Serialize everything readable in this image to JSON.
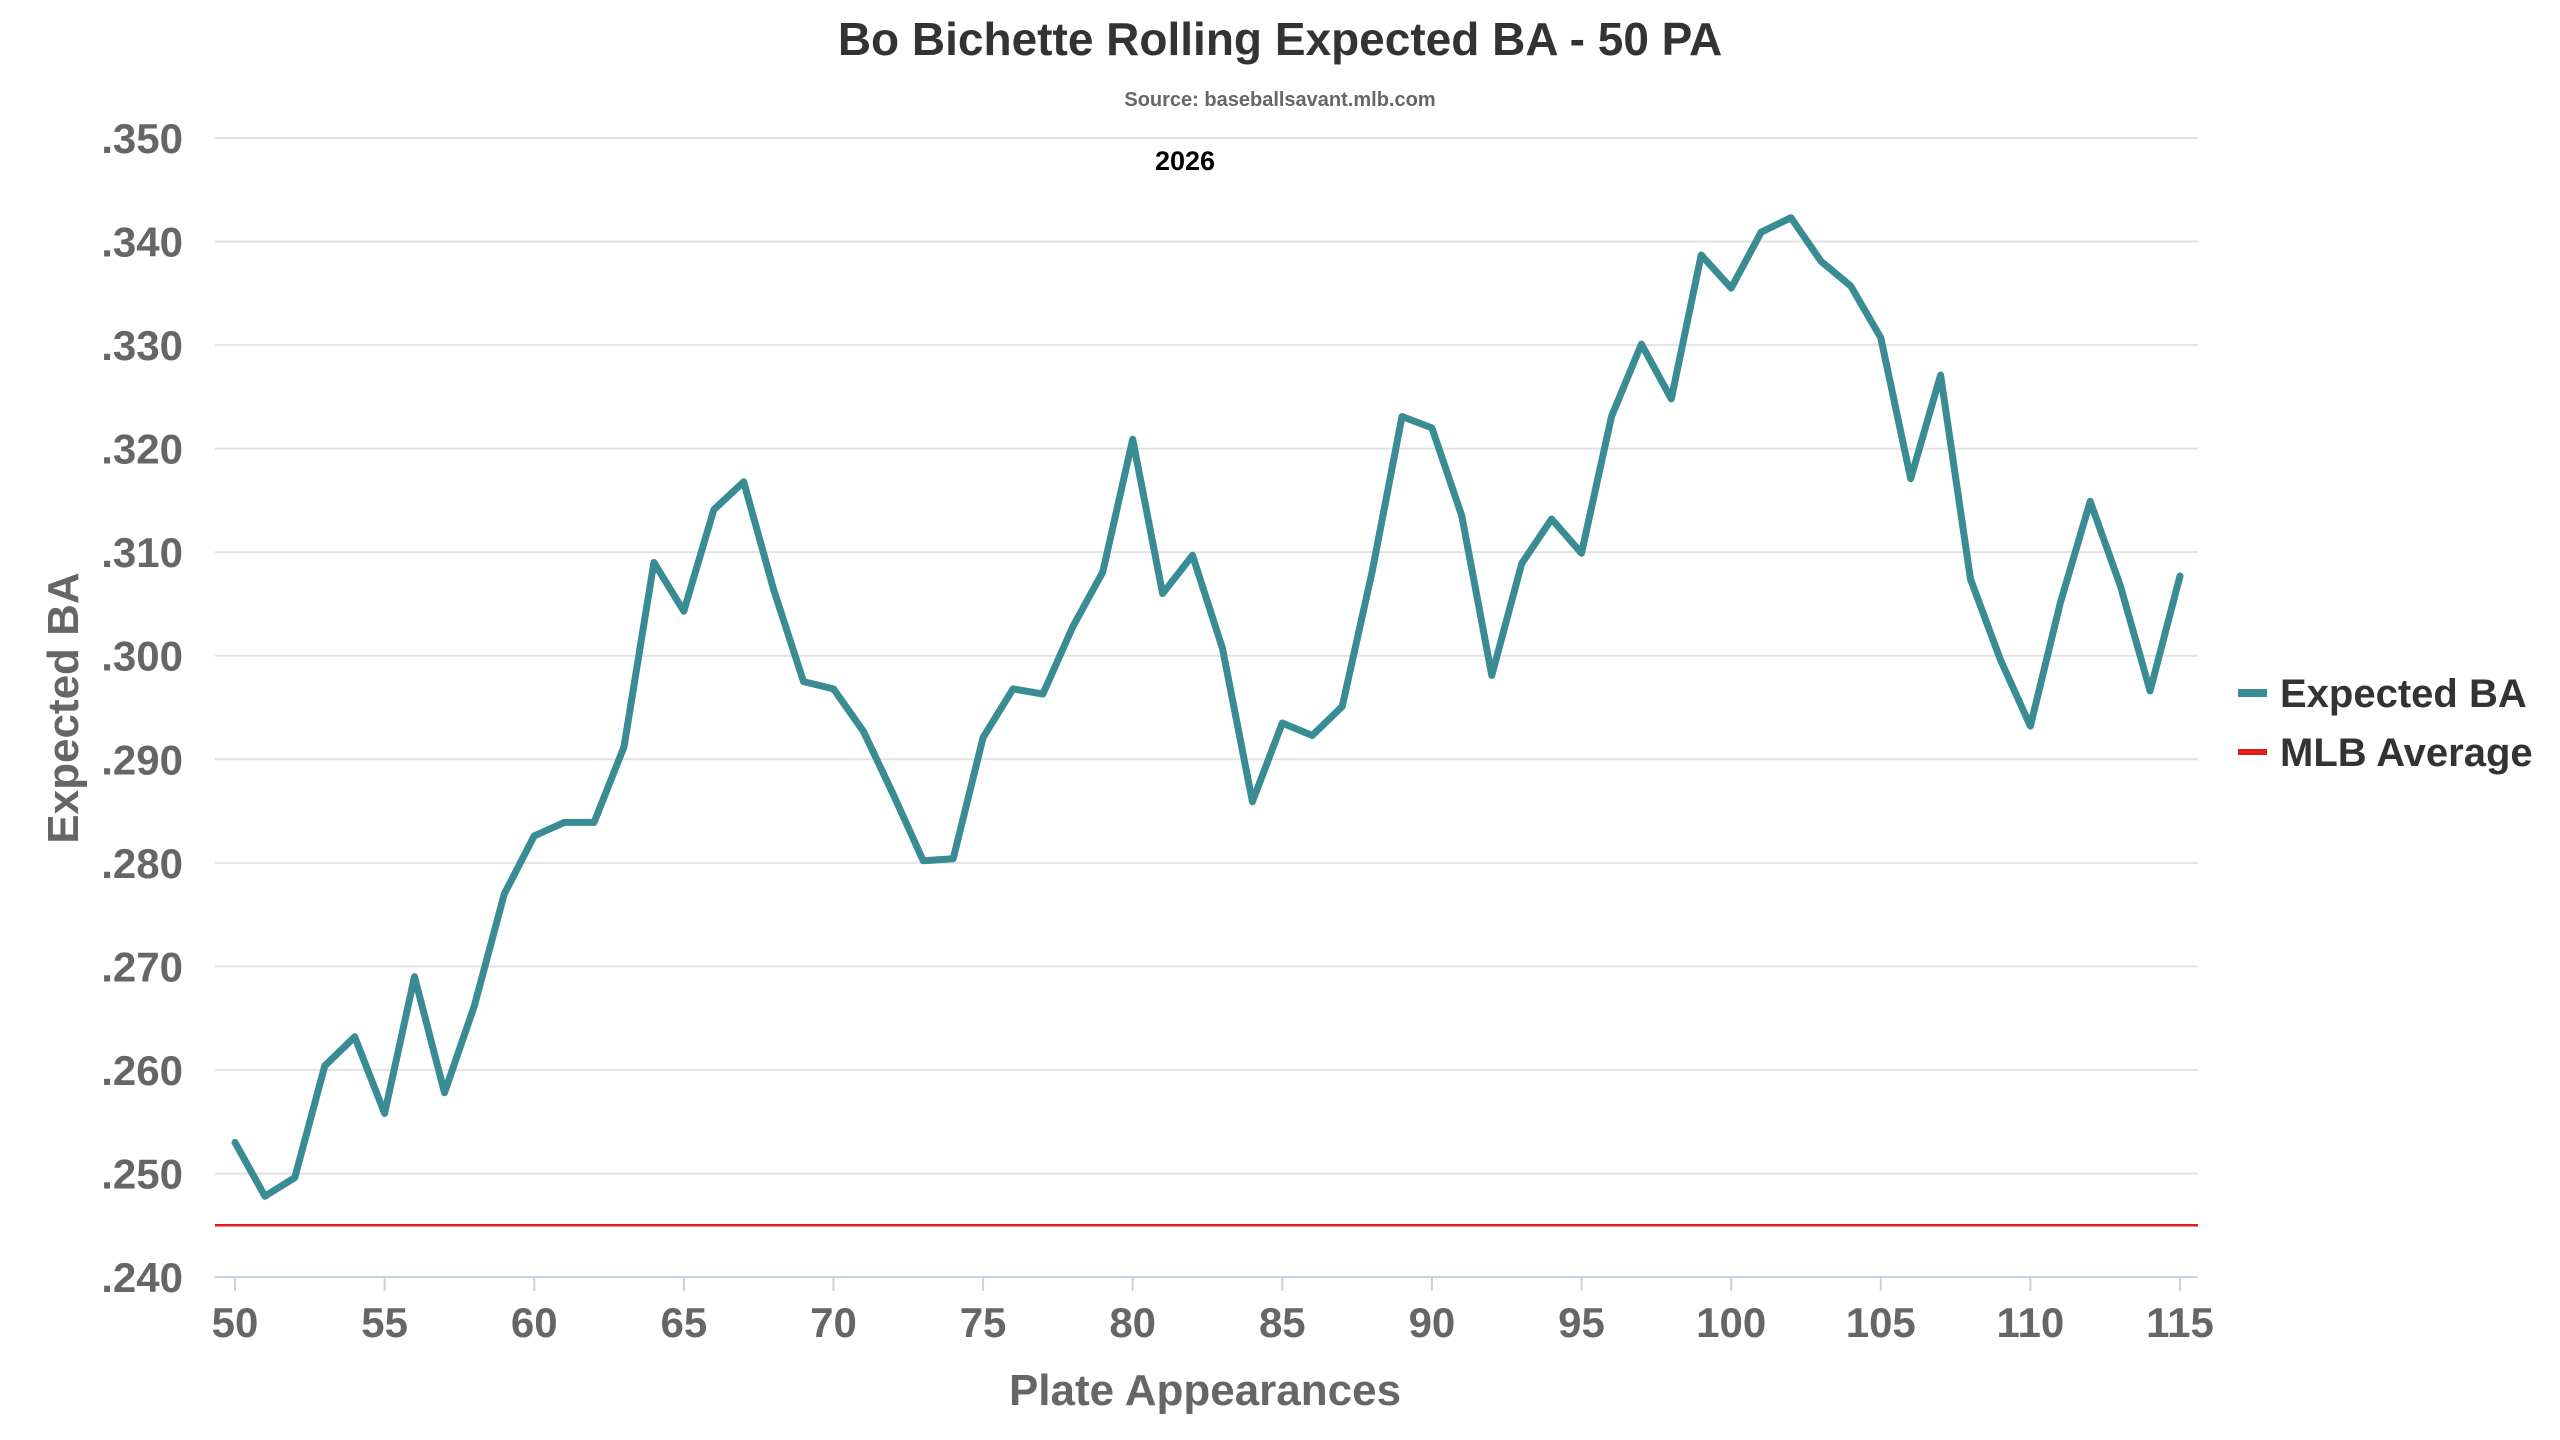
{
  "chart_data": {
    "type": "line",
    "title": "Bo Bichette Rolling Expected BA - 50 PA",
    "subtitle": "Source: baseballsavant.mlb.com",
    "annotation": "2026",
    "xlabel": "Plate Appearances",
    "ylabel": "Expected BA",
    "xlim": [
      50,
      115
    ],
    "ylim": [
      0.24,
      0.35
    ],
    "x_ticks": [
      50,
      55,
      60,
      65,
      70,
      75,
      80,
      85,
      90,
      95,
      100,
      105,
      110,
      115
    ],
    "x_tick_labels": [
      "50",
      "55",
      "60",
      "65",
      "70",
      "75",
      "80",
      "85",
      "90",
      "95",
      "100",
      "105",
      "110",
      "115"
    ],
    "y_ticks": [
      0.24,
      0.25,
      0.26,
      0.27,
      0.28,
      0.29,
      0.3,
      0.31,
      0.32,
      0.33,
      0.34,
      0.35
    ],
    "y_tick_labels": [
      ".240",
      ".250",
      ".260",
      ".270",
      ".280",
      ".290",
      ".300",
      ".310",
      ".320",
      ".330",
      ".340",
      ".350"
    ],
    "grid": true,
    "legend_position": "right",
    "series": [
      {
        "name": "Expected BA",
        "color": "#3a8c94",
        "x": [
          50,
          51,
          52,
          53,
          54,
          55,
          56,
          57,
          58,
          59,
          60,
          61,
          62,
          63,
          64,
          65,
          66,
          67,
          68,
          69,
          70,
          71,
          72,
          73,
          74,
          75,
          76,
          77,
          78,
          79,
          80,
          81,
          82,
          83,
          84,
          85,
          86,
          87,
          88,
          89,
          90,
          91,
          92,
          93,
          94,
          95,
          96,
          97,
          98,
          99,
          100,
          101,
          102,
          103,
          104,
          105,
          106,
          107,
          108,
          109,
          110,
          111,
          112,
          113,
          114,
          115
        ],
        "values": [
          0.253,
          0.2478,
          0.2496,
          0.2604,
          0.2632,
          0.2558,
          0.269,
          0.2578,
          0.2662,
          0.277,
          0.2826,
          0.2839,
          0.2839,
          0.2912,
          0.309,
          0.3043,
          0.3141,
          0.3168,
          0.3064,
          0.2975,
          0.2968,
          0.2927,
          0.2866,
          0.2802,
          0.2804,
          0.2921,
          0.2968,
          0.2963,
          0.3028,
          0.3081,
          0.3209,
          0.306,
          0.3097,
          0.3007,
          0.2859,
          0.2935,
          0.2923,
          0.2951,
          0.3081,
          0.3231,
          0.322,
          0.3135,
          0.2981,
          0.3089,
          0.3132,
          0.3099,
          0.3231,
          0.3301,
          0.3248,
          0.3387,
          0.3355,
          0.3409,
          0.3423,
          0.3381,
          0.3357,
          0.3307,
          0.3171,
          0.3271,
          0.3074,
          0.2996,
          0.2932,
          0.3051,
          0.3149,
          0.3068,
          0.2966,
          0.3077
        ]
      },
      {
        "name": "MLB Average",
        "color": "#e21b1b",
        "value": 0.245
      }
    ]
  }
}
